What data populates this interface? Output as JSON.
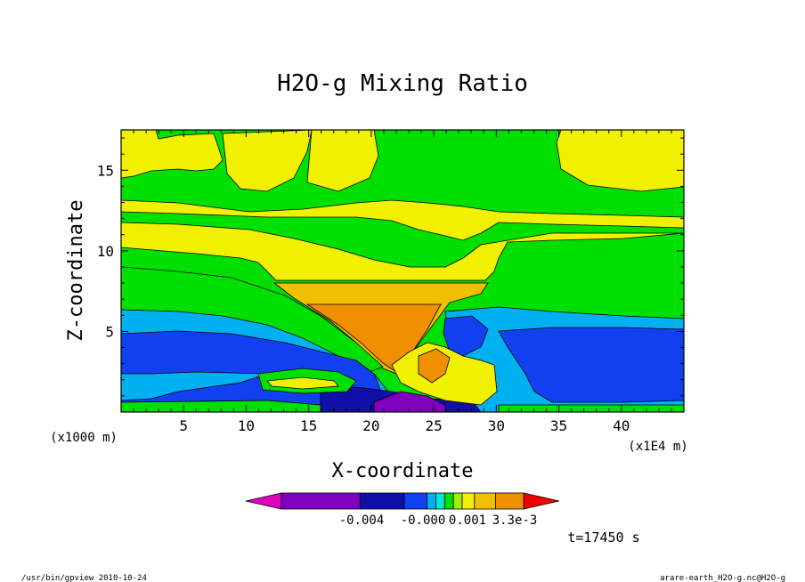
{
  "chart_data": {
    "type": "heatmap",
    "title": "H2O-g Mixing Ratio",
    "xlabel": "X-coordinate",
    "ylabel": "Z-coordinate",
    "x_unit": "(x1E4 m)",
    "y_unit": "(x1000 m)",
    "xlim": [
      0,
      45
    ],
    "ylim": [
      0,
      17.5
    ],
    "x_ticks": [
      5,
      10,
      15,
      20,
      25,
      30,
      35,
      40
    ],
    "y_ticks": [
      5,
      10,
      15
    ],
    "colorbar": {
      "colors": [
        "#e000c0",
        "#8000c0",
        "#1010a8",
        "#1040f0",
        "#00b0f0",
        "#00e8e0",
        "#00e000",
        "#a0f000",
        "#f0f000",
        "#f0c000",
        "#f09000",
        "#f06000",
        "#f00000"
      ],
      "labels": [
        "-0.004",
        "-0.000",
        "0.001",
        "3.3e-3"
      ]
    },
    "time_label": "t=17450 s"
  },
  "footer": {
    "left": "/usr/bin/gpview  2010-10-24",
    "right": "arare-earth_H2O-g.nc@H2O-g"
  }
}
